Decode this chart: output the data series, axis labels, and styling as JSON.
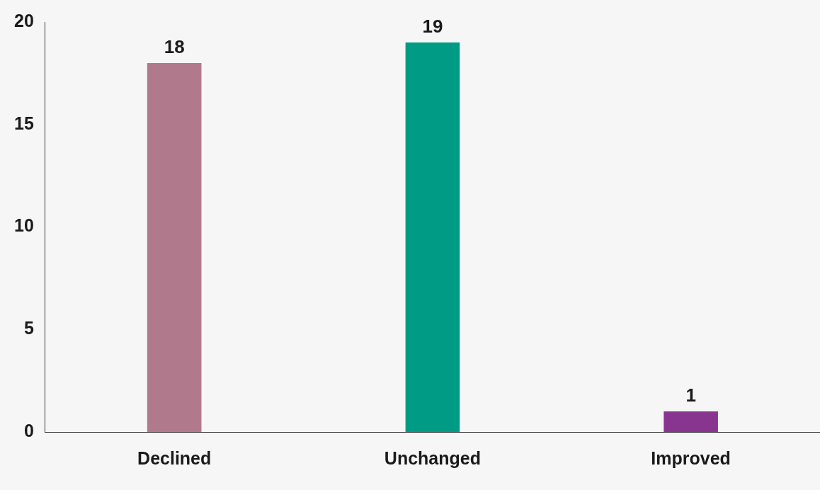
{
  "chart_data": {
    "type": "bar",
    "categories": [
      "Declined",
      "Unchanged",
      "Improved"
    ],
    "values": [
      18,
      19,
      1
    ],
    "colors": [
      "#b07a8c",
      "#009b84",
      "#87358f"
    ],
    "ylim": [
      0,
      20
    ],
    "yticks": [
      0,
      5,
      10,
      15,
      20
    ],
    "grid": false,
    "legend": false,
    "data_labels": true
  }
}
